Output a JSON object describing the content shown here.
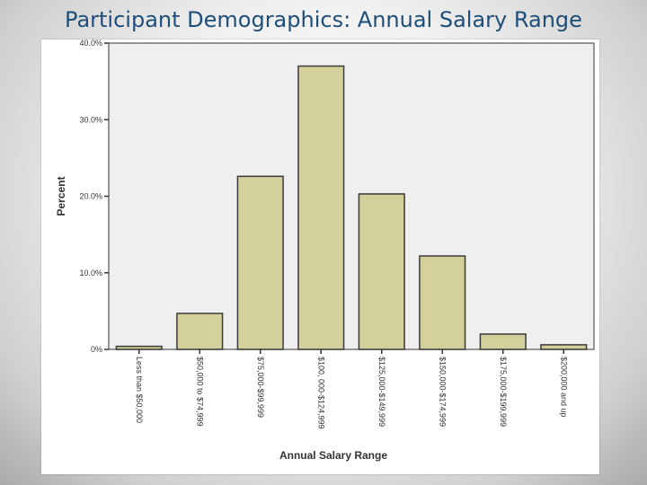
{
  "slide": {
    "title": "Participant Demographics: Annual Salary Range"
  },
  "colors": {
    "bar_fill": "#d4d09b",
    "bar_stroke": "#3a3a3a",
    "plot_background": "#efefef",
    "title_color": "#1f4e79"
  },
  "chart_data": {
    "type": "bar",
    "categories": [
      "Less than $50,000",
      "$50,000 to $74,999",
      "$75,000-$99,999",
      "$100, 000-$124,999",
      "$125,000-$149,999",
      "$150,000-$174,999",
      "$175,000-$199,999",
      "$200,000 and up"
    ],
    "values": [
      0.4,
      4.7,
      22.6,
      37.0,
      20.3,
      12.2,
      2.0,
      0.6
    ],
    "xlabel": "Annual Salary Range",
    "ylabel": "Percent",
    "ylim": [
      0,
      40
    ],
    "yticks": [
      0,
      10,
      20,
      30,
      40
    ],
    "ytick_labels": [
      "0%",
      "10.0%",
      "20.0%",
      "30.0%",
      "40.0%"
    ],
    "grid": false
  }
}
